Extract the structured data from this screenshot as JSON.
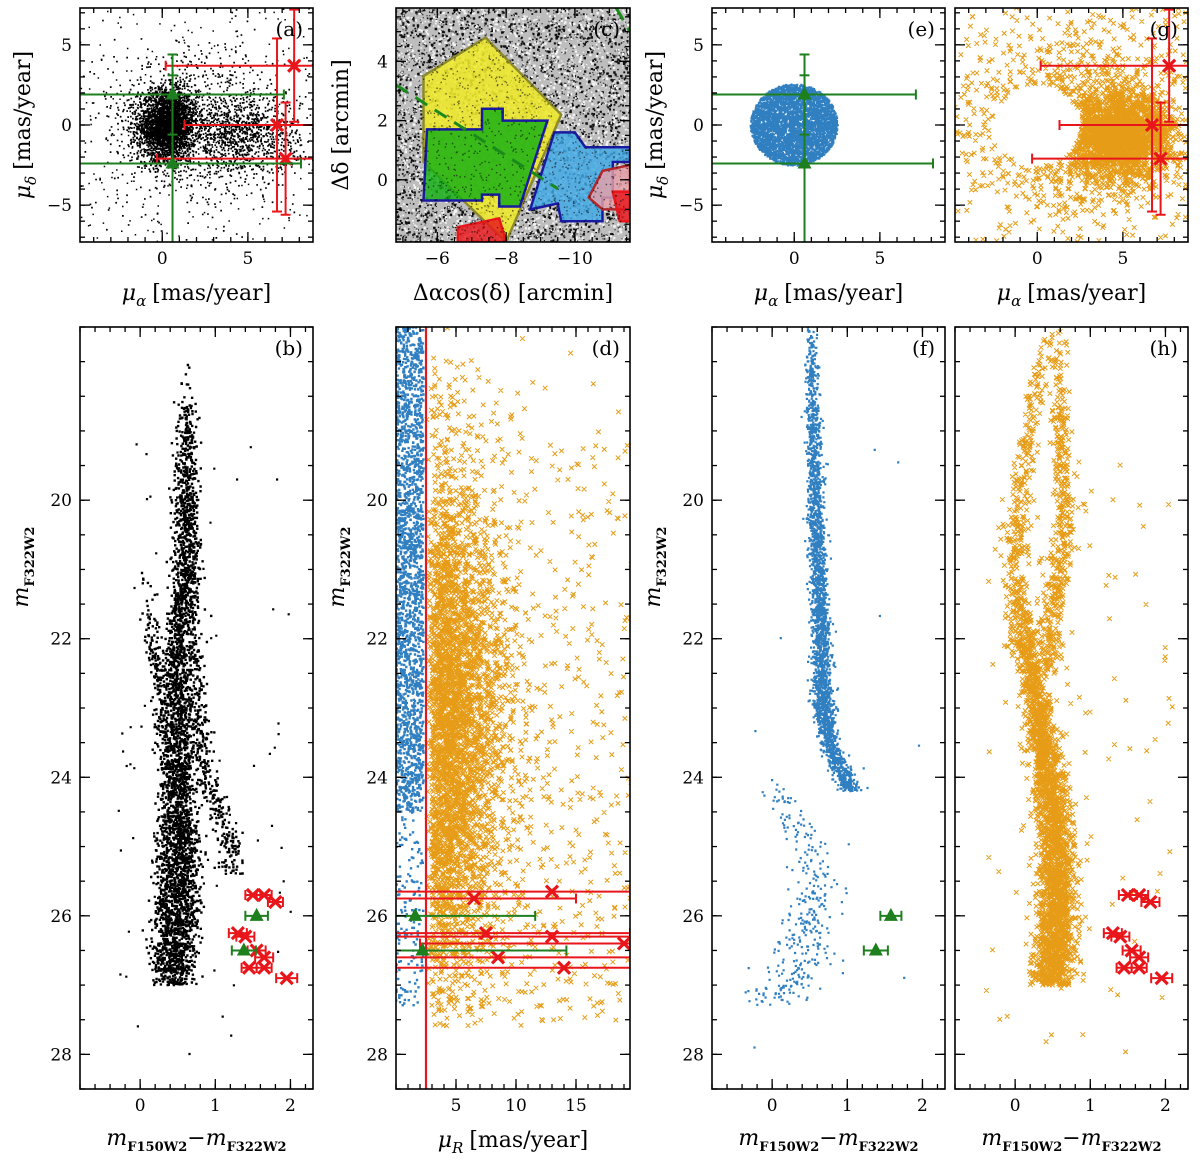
{
  "figure": {
    "colors": {
      "black": "#000000",
      "blue": "#2f7fc1",
      "orange": "#e69c16",
      "red": "#e8161b",
      "green": "#1d7f1d",
      "field_yellow": "#efe92a",
      "field_green": "#12b012",
      "field_blue": "#3ea8e6",
      "field_pink": "#e8a0a8",
      "outline_olive": "#8c8a2a",
      "outline_navy": "#1a1aa0"
    },
    "labels": {
      "pm_ra": "μ",
      "pm_ra_sub": "α",
      "pm_ra_unit": "[mas/year]",
      "pm_dec": "μ",
      "pm_dec_sub": "δ",
      "pm_dec_unit": "[mas/year]",
      "dra": "Δαcos(δ) [arcmin]",
      "ddec": "Δδ [arcmin]",
      "mag": "m",
      "mag_sub": "F322W2",
      "color_a": "m",
      "color_a_sub": "F150W2",
      "color_minus": "−m",
      "color_b_sub": "F322W2",
      "pmR": "μ",
      "pmR_sub": "R",
      "pmR_unit": "[mas/year]"
    }
  },
  "chart_data": [
    {
      "panel": "(a)",
      "type": "scatter",
      "xlim": [
        -4.8,
        8.8
      ],
      "ylim": [
        -7.3,
        7.3
      ],
      "xticks": [
        0,
        5
      ],
      "yticks": [
        -5,
        0,
        5
      ],
      "clumps": [
        {
          "name": "cluster",
          "x": 0.3,
          "y": 0.0,
          "sx": 0.85,
          "sy": 1.1,
          "n": 3200,
          "color": "black"
        },
        {
          "name": "field",
          "x": 4.8,
          "y": -0.6,
          "sx": 1.6,
          "sy": 1.2,
          "n": 900,
          "color": "black"
        },
        {
          "name": "halo",
          "x": 2.0,
          "y": 0.0,
          "sx": 3.0,
          "sy": 2.8,
          "n": 900,
          "color": "black"
        }
      ],
      "green_points": [
        {
          "x": 0.6,
          "y": 1.9,
          "xerr": 6.5,
          "yerr": 2.5
        },
        {
          "x": 0.6,
          "y": -2.4,
          "xerr": 7.5,
          "yerr": 5.5
        }
      ],
      "red_points": [
        {
          "x": 7.7,
          "y": 3.7,
          "xerr": 7.5,
          "yerr": 3.5
        },
        {
          "x": 6.7,
          "y": 0.0,
          "xerr": 5.4,
          "yerr": 5.4
        },
        {
          "x": 7.2,
          "y": -2.1,
          "xerr": 7.5,
          "yerr": 3.5
        }
      ]
    },
    {
      "panel": "(c)",
      "type": "map",
      "xlim": [
        -4.8,
        -11.6
      ],
      "ylim": [
        -2.1,
        5.8
      ],
      "xticks": [
        -6,
        -8,
        -10
      ],
      "yticks": [
        0,
        2,
        4
      ],
      "regions": [
        {
          "name": "yellow",
          "fill": "field_yellow",
          "stroke": "outline_olive",
          "points": [
            [
              -5.6,
              3.5
            ],
            [
              -7.4,
              4.8
            ],
            [
              -9.6,
              2.2
            ],
            [
              -8.0,
              -2.1
            ],
            [
              -5.6,
              0.6
            ]
          ]
        },
        {
          "name": "green",
          "fill": "field_green",
          "stroke": "outline_navy",
          "points": [
            [
              -5.7,
              1.7
            ],
            [
              -7.3,
              1.7
            ],
            [
              -7.3,
              2.4
            ],
            [
              -7.9,
              2.4
            ],
            [
              -7.9,
              2.0
            ],
            [
              -9.2,
              2.0
            ],
            [
              -8.4,
              -0.9
            ],
            [
              -7.8,
              -0.9
            ],
            [
              -7.8,
              -0.5
            ],
            [
              -7.3,
              -0.5
            ],
            [
              -7.3,
              -0.7
            ],
            [
              -5.6,
              -0.7
            ]
          ]
        },
        {
          "name": "blue",
          "fill": "field_blue",
          "stroke": "outline_navy",
          "points": [
            [
              -9.4,
              1.6
            ],
            [
              -10.0,
              1.6
            ],
            [
              -10.3,
              1.1
            ],
            [
              -11.6,
              1.1
            ],
            [
              -11.6,
              0.6
            ],
            [
              -11.1,
              0.6
            ],
            [
              -11.1,
              -0.6
            ],
            [
              -10.8,
              -0.6
            ],
            [
              -10.8,
              -1.4
            ],
            [
              -9.6,
              -1.4
            ],
            [
              -9.5,
              -0.8
            ],
            [
              -8.7,
              -1.0
            ]
          ]
        },
        {
          "name": "pink",
          "fill": "field_pink",
          "stroke": "#b0282c",
          "points": [
            [
              -10.4,
              -0.6
            ],
            [
              -10.8,
              0.3
            ],
            [
              -11.6,
              0.5
            ],
            [
              -11.6,
              -1.0
            ],
            [
              -10.8,
              -1.0
            ]
          ]
        },
        {
          "name": "red-edge",
          "fill": "red",
          "stroke": "red",
          "points": [
            [
              -11.1,
              -0.4
            ],
            [
              -11.6,
              -0.4
            ],
            [
              -11.6,
              -1.4
            ],
            [
              -11.3,
              -1.4
            ]
          ]
        },
        {
          "name": "red-bottom",
          "fill": "red",
          "stroke": "red",
          "points": [
            [
              -6.6,
              -1.6
            ],
            [
              -7.8,
              -1.3
            ],
            [
              -8.0,
              -2.1
            ],
            [
              -6.6,
              -2.1
            ]
          ]
        }
      ],
      "dashed_lines": [
        [
          [
            -4.8,
            3.2
          ],
          [
            -9.5,
            -0.3
          ]
        ],
        [
          [
            -11.2,
            5.8
          ],
          [
            -11.6,
            5.0
          ]
        ]
      ]
    },
    {
      "panel": "(e)",
      "type": "scatter",
      "xlim": [
        -4.8,
        8.8
      ],
      "ylim": [
        -7.3,
        7.3
      ],
      "xticks": [
        0,
        5
      ],
      "yticks": [
        -5,
        0,
        5
      ],
      "disk": {
        "x": 0.0,
        "y": 0.0,
        "r": 2.55,
        "n": 4500,
        "color": "blue"
      },
      "green_points": [
        {
          "x": 0.6,
          "y": 1.9,
          "xerr": 6.5,
          "yerr": 2.5
        },
        {
          "x": 0.6,
          "y": -2.4,
          "xerr": 7.5,
          "yerr": 5.5
        }
      ]
    },
    {
      "panel": "(g)",
      "type": "scatter",
      "xlim": [
        -4.8,
        8.8
      ],
      "ylim": [
        -7.3,
        7.3
      ],
      "xticks": [
        0,
        5
      ],
      "yticks": [
        -5,
        0,
        5
      ],
      "clumps": [
        {
          "name": "field",
          "x": 5.0,
          "y": -0.7,
          "sx": 1.5,
          "sy": 1.3,
          "n": 2000,
          "color": "orange"
        },
        {
          "name": "halo",
          "x": 2.5,
          "y": 0.0,
          "sx": 3.0,
          "sy": 2.8,
          "n": 1300,
          "color": "orange"
        }
      ],
      "excluded_radius": 2.55,
      "red_points": [
        {
          "x": 7.7,
          "y": 3.7,
          "xerr": 7.5,
          "yerr": 3.5
        },
        {
          "x": 6.7,
          "y": 0.0,
          "xerr": 5.4,
          "yerr": 5.4
        },
        {
          "x": 7.2,
          "y": -2.1,
          "xerr": 7.5,
          "yerr": 3.5
        }
      ]
    },
    {
      "panel": "(b)",
      "type": "scatter",
      "xlim": [
        -0.8,
        2.3
      ],
      "ylim": [
        28.5,
        17.5
      ],
      "xticks": [
        0,
        1,
        2
      ],
      "yticks": [
        20,
        22,
        24,
        26,
        28
      ],
      "sequences": [
        {
          "name": "main",
          "n": 3000,
          "spread": 0.07,
          "color": "black",
          "track": [
            [
              18.5,
              0.6
            ],
            [
              21.0,
              0.6
            ],
            [
              22.0,
              0.5
            ],
            [
              23.0,
              0.5
            ],
            [
              24.0,
              0.52
            ],
            [
              25.0,
              0.57
            ],
            [
              26.0,
              0.55
            ],
            [
              26.6,
              0.5
            ],
            [
              27.0,
              0.45
            ]
          ]
        },
        {
          "name": "white-dwarf-like",
          "n": 700,
          "spread": 0.05,
          "color": "black",
          "track": [
            [
              21.0,
              0.1
            ],
            [
              22.0,
              0.16
            ],
            [
              22.6,
              0.25
            ],
            [
              23.2,
              0.32
            ],
            [
              24.0,
              0.38
            ],
            [
              25.0,
              0.35
            ],
            [
              26.0,
              0.33
            ],
            [
              26.8,
              0.3
            ]
          ]
        },
        {
          "name": "binary",
          "n": 600,
          "spread": 0.045,
          "color": "black",
          "track": [
            [
              18.0,
              0.62
            ],
            [
              19.5,
              0.66
            ],
            [
              21.0,
              0.7
            ],
            [
              22.0,
              0.72
            ],
            [
              23.0,
              0.78
            ],
            [
              24.0,
              0.88
            ],
            [
              24.8,
              1.15
            ],
            [
              25.4,
              1.25
            ]
          ]
        }
      ],
      "green_points": [
        {
          "x": 1.55,
          "y": 26.0,
          "xerr": 0.15
        },
        {
          "x": 1.38,
          "y": 26.5,
          "xerr": 0.16
        }
      ],
      "red_points": [
        {
          "x": 1.5,
          "y": 25.7,
          "xerr": 0.1
        },
        {
          "x": 1.65,
          "y": 25.7,
          "xerr": 0.1
        },
        {
          "x": 1.8,
          "y": 25.8,
          "xerr": 0.1
        },
        {
          "x": 1.3,
          "y": 26.25,
          "xerr": 0.12
        },
        {
          "x": 1.4,
          "y": 26.3,
          "xerr": 0.12
        },
        {
          "x": 1.55,
          "y": 26.5,
          "xerr": 0.12
        },
        {
          "x": 1.65,
          "y": 26.6,
          "xerr": 0.12
        },
        {
          "x": 1.45,
          "y": 26.75,
          "xerr": 0.1
        },
        {
          "x": 1.65,
          "y": 26.75,
          "xerr": 0.1
        },
        {
          "x": 1.95,
          "y": 26.9,
          "xerr": 0.14
        }
      ]
    },
    {
      "panel": "(d)",
      "type": "scatter",
      "xlim": [
        0,
        19.5
      ],
      "ylim": [
        28.5,
        17.5
      ],
      "xticks": [
        5,
        10,
        15
      ],
      "yticks": [
        20,
        22,
        24,
        26,
        28
      ],
      "cut_x": 2.5,
      "blue_band": {
        "xmax": 2.3,
        "ymin": 17.5,
        "ymax": 24.5,
        "n": 2200
      },
      "blue_sparse": {
        "xmax": 2.3,
        "ymin": 24.5,
        "ymax": 27.3,
        "n": 150
      },
      "orange_density": {
        "peak_x": 5.0,
        "peak_y": 23.2,
        "sx": 2.6,
        "sy": 1.9,
        "n": 3500,
        "tail_n": 900
      },
      "green_points": [
        {
          "x": 1.6,
          "y": 26.0,
          "xerr": 10.0
        },
        {
          "x": 2.2,
          "y": 26.5,
          "xerr": 12.0
        }
      ],
      "red_points": [
        {
          "x": 6.5,
          "y": 25.75,
          "xerr": 8.5
        },
        {
          "x": 13.0,
          "y": 25.65,
          "xerr": 14.0
        },
        {
          "x": 7.5,
          "y": 26.25,
          "xerr": 12.0
        },
        {
          "x": 13.0,
          "y": 26.3,
          "xerr": 14.0
        },
        {
          "x": 19.0,
          "y": 26.4,
          "xerr": 17.0
        },
        {
          "x": 8.5,
          "y": 26.6,
          "xerr": 15.0
        },
        {
          "x": 14.0,
          "y": 26.75,
          "xerr": 14.0
        }
      ]
    },
    {
      "panel": "(f)",
      "type": "scatter",
      "xlim": [
        -0.8,
        2.3
      ],
      "ylim": [
        28.5,
        17.5
      ],
      "xticks": [
        0,
        1,
        2
      ],
      "yticks": [
        20,
        22,
        24,
        26,
        28
      ],
      "sequences": [
        {
          "name": "main",
          "n": 2600,
          "spread": 0.04,
          "color": "blue",
          "track": [
            [
              17.5,
              0.52
            ],
            [
              19.0,
              0.55
            ],
            [
              20.0,
              0.58
            ],
            [
              21.0,
              0.62
            ],
            [
              22.0,
              0.65
            ],
            [
              23.0,
              0.68
            ],
            [
              23.6,
              0.78
            ],
            [
              24.0,
              0.95
            ],
            [
              24.2,
              1.05
            ]
          ]
        },
        {
          "name": "sparse",
          "n": 320,
          "spread": 0.12,
          "color": "blue",
          "track": [
            [
              24.0,
              0.0
            ],
            [
              25.0,
              0.45
            ],
            [
              25.5,
              0.6
            ],
            [
              26.0,
              0.55
            ],
            [
              26.5,
              0.45
            ],
            [
              27.0,
              0.3
            ],
            [
              27.3,
              -0.1
            ]
          ]
        }
      ],
      "green_points": [
        {
          "x": 1.58,
          "y": 26.0,
          "xerr": 0.14
        },
        {
          "x": 1.38,
          "y": 26.5,
          "xerr": 0.16
        }
      ]
    },
    {
      "panel": "(h)",
      "type": "scatter",
      "xlim": [
        -0.8,
        2.3
      ],
      "ylim": [
        28.5,
        17.5
      ],
      "xticks": [
        0,
        1,
        2
      ],
      "yticks": [
        20,
        22,
        24,
        26,
        28
      ],
      "sequences": [
        {
          "name": "main",
          "n": 2600,
          "spread": 0.08,
          "color": "orange",
          "track": [
            [
              21.0,
              0.0
            ],
            [
              22.0,
              0.12
            ],
            [
              23.0,
              0.3
            ],
            [
              24.0,
              0.45
            ],
            [
              25.0,
              0.55
            ],
            [
              26.0,
              0.55
            ],
            [
              27.0,
              0.5
            ]
          ]
        },
        {
          "name": "upper",
          "n": 500,
          "spread": 0.05,
          "color": "orange",
          "track": [
            [
              17.5,
              0.55
            ],
            [
              18.5,
              0.6
            ],
            [
              20.0,
              0.65
            ],
            [
              21.0,
              0.6
            ],
            [
              21.5,
              0.5
            ],
            [
              22.5,
              0.42
            ]
          ]
        },
        {
          "name": "upper-left",
          "n": 250,
          "spread": 0.05,
          "color": "orange",
          "track": [
            [
              17.5,
              0.5
            ],
            [
              18.5,
              0.25
            ],
            [
              20.0,
              0.05
            ],
            [
              21.0,
              0.0
            ]
          ]
        }
      ],
      "red_points": [
        {
          "x": 1.5,
          "y": 25.7,
          "xerr": 0.12
        },
        {
          "x": 1.65,
          "y": 25.7,
          "xerr": 0.12
        },
        {
          "x": 1.8,
          "y": 25.8,
          "xerr": 0.12
        },
        {
          "x": 1.3,
          "y": 26.25,
          "xerr": 0.12
        },
        {
          "x": 1.4,
          "y": 26.3,
          "xerr": 0.12
        },
        {
          "x": 1.55,
          "y": 26.5,
          "xerr": 0.12
        },
        {
          "x": 1.65,
          "y": 26.6,
          "xerr": 0.12
        },
        {
          "x": 1.45,
          "y": 26.75,
          "xerr": 0.1
        },
        {
          "x": 1.65,
          "y": 26.75,
          "xerr": 0.1
        },
        {
          "x": 1.95,
          "y": 26.9,
          "xerr": 0.14
        }
      ]
    }
  ]
}
